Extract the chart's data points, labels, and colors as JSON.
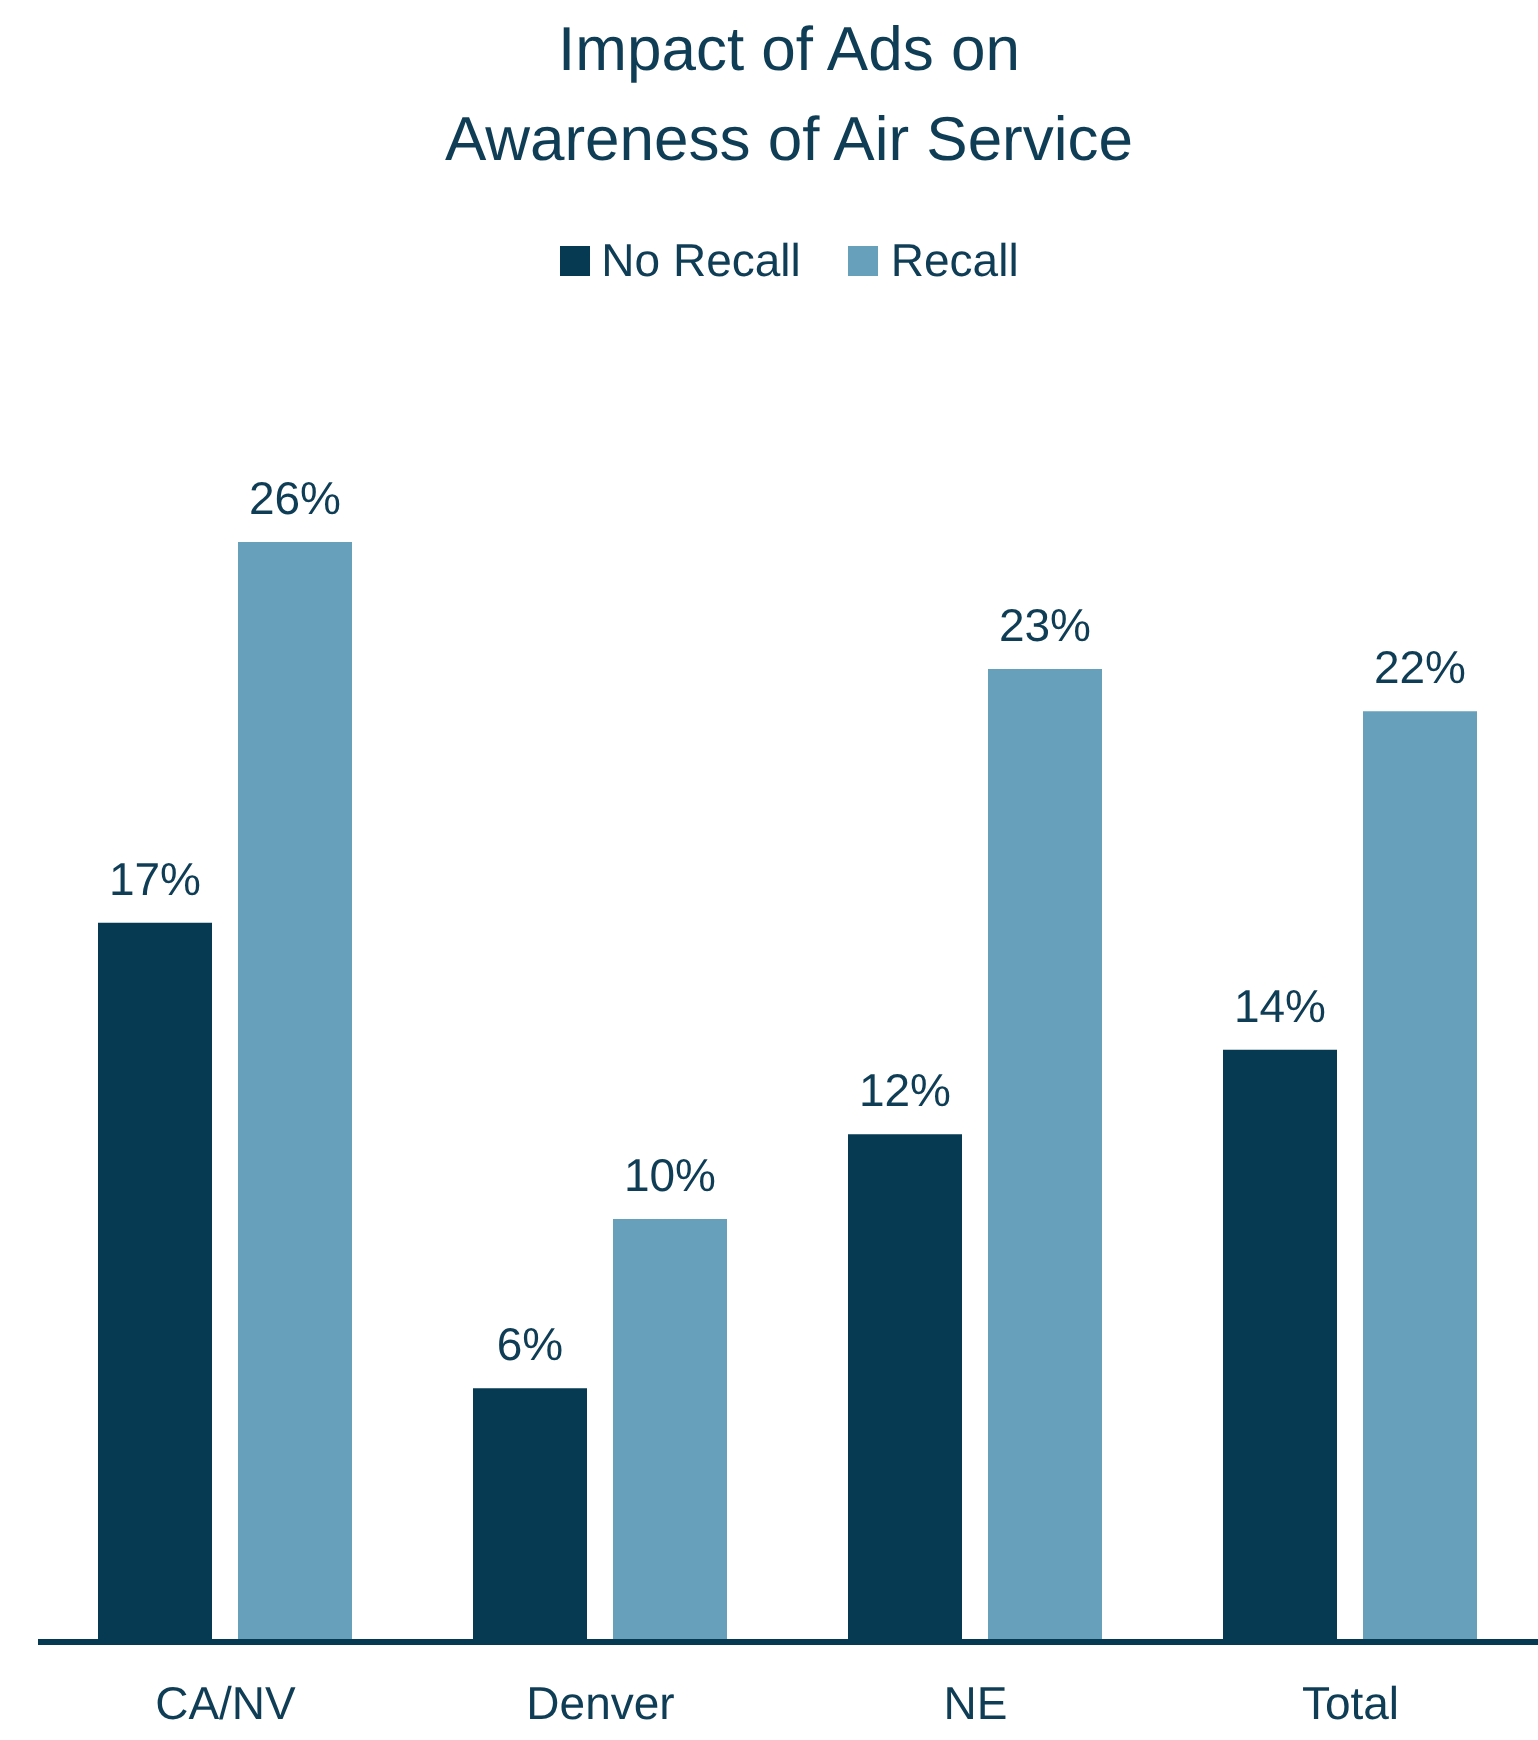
{
  "chart_data": {
    "type": "bar",
    "title": "Impact of Ads on\nAwareness of Air Service",
    "categories": [
      "CA/NV",
      "Denver",
      "NE",
      "Total"
    ],
    "series": [
      {
        "name": "No Recall",
        "color": "#053a52",
        "values": [
          17,
          6,
          12,
          14
        ],
        "value_labels": [
          "17%",
          "6%",
          "12%",
          "14%"
        ]
      },
      {
        "name": "Recall",
        "color": "#66a0ba",
        "values": [
          26,
          10,
          23,
          22
        ],
        "value_labels": [
          "26%",
          "10%",
          "23%",
          "22%"
        ]
      }
    ],
    "legend": "top"
  }
}
